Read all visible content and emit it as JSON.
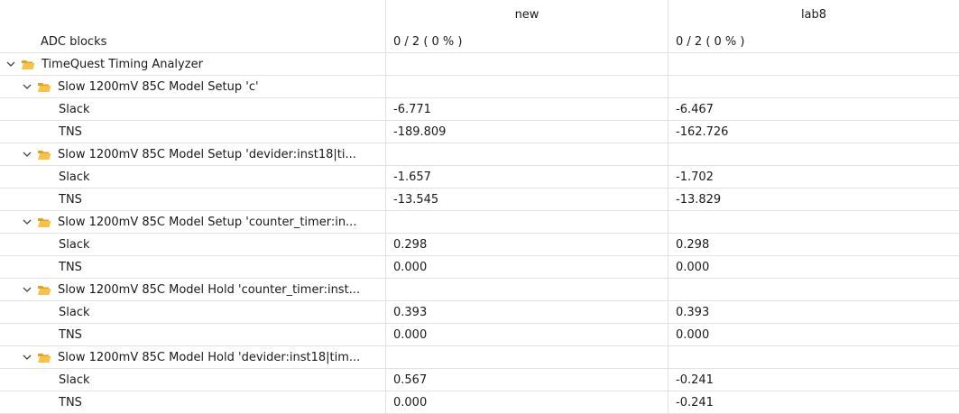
{
  "columns": {
    "name": "",
    "col1": "new",
    "col2": "lab8"
  },
  "adc_row": {
    "label": "ADC blocks",
    "col1": "0 / 2 ( 0 % )",
    "col2": "0 / 2 ( 0 % )"
  },
  "root": {
    "label": "TimeQuest Timing Analyzer"
  },
  "groups": [
    {
      "label": "Slow 1200mV 85C Model Setup 'c'",
      "rows": [
        {
          "label": "Slack",
          "col1": "-6.771",
          "col2": "-6.467"
        },
        {
          "label": "TNS",
          "col1": "-189.809",
          "col2": "-162.726"
        }
      ]
    },
    {
      "label": "Slow 1200mV 85C Model Setup 'devider:inst18|ti...",
      "rows": [
        {
          "label": "Slack",
          "col1": "-1.657",
          "col2": "-1.702"
        },
        {
          "label": "TNS",
          "col1": "-13.545",
          "col2": "-13.829"
        }
      ]
    },
    {
      "label": "Slow 1200mV 85C Model Setup 'counter_timer:in...",
      "rows": [
        {
          "label": "Slack",
          "col1": "0.298",
          "col2": "0.298"
        },
        {
          "label": "TNS",
          "col1": "0.000",
          "col2": "0.000"
        }
      ]
    },
    {
      "label": "Slow 1200mV 85C Model Hold 'counter_timer:inst...",
      "rows": [
        {
          "label": "Slack",
          "col1": "0.393",
          "col2": "0.393"
        },
        {
          "label": "TNS",
          "col1": "0.000",
          "col2": "0.000"
        }
      ]
    },
    {
      "label": "Slow 1200mV 85C Model Hold 'devider:inst18|tim...",
      "rows": [
        {
          "label": "Slack",
          "col1": "0.567",
          "col2": "-0.241"
        },
        {
          "label": "TNS",
          "col1": "0.000",
          "col2": "-0.241"
        }
      ]
    }
  ],
  "icons": {
    "expand": "chevron-down-icon",
    "folder": "open-folder-icon"
  },
  "colors": {
    "folder": "#f2b233",
    "grid": "#e2e2e2"
  }
}
